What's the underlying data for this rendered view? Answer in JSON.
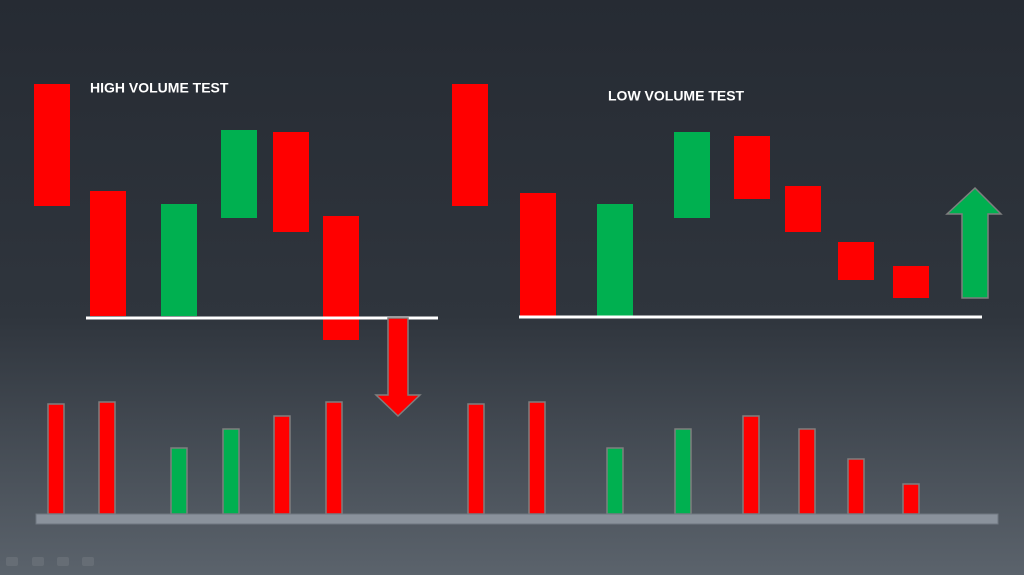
{
  "panels": [
    {
      "title": "HIGH VOLUME TEST"
    },
    {
      "title": "LOW VOLUME TEST"
    }
  ]
}
